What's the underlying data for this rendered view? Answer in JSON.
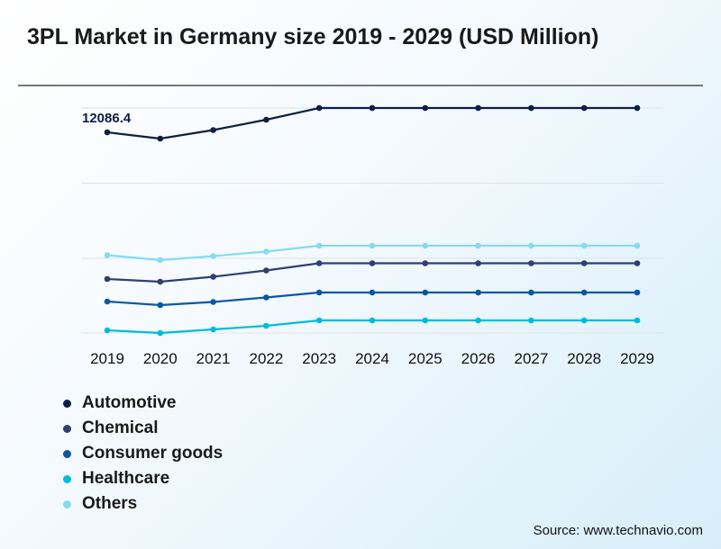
{
  "chart_data": {
    "type": "line",
    "title": "3PL Market in Germany size 2019 - 2029 (USD Million)",
    "xlabel": "",
    "ylabel": "",
    "categories": [
      "2019",
      "2020",
      "2021",
      "2022",
      "2023",
      "2024",
      "2025",
      "2026",
      "2027",
      "2028",
      "2029"
    ],
    "ylim": [
      0,
      16300
    ],
    "grid": true,
    "legend": "bottom-left",
    "series": [
      {
        "name": "Automotive",
        "color": "#0d1f45",
        "values": [
          12086.4,
          11707,
          12222,
          12846,
          13550,
          13550,
          13550,
          13550,
          13550,
          13550,
          13550
        ]
      },
      {
        "name": "Chemical",
        "color": "#2e3f72",
        "values": [
          3252,
          3089,
          3388,
          3767,
          4200,
          4200,
          4200,
          4200,
          4200,
          4200,
          4200
        ]
      },
      {
        "name": "Consumer goods",
        "color": "#0a57a6",
        "values": [
          1897,
          1680,
          1870,
          2141,
          2439,
          2439,
          2439,
          2439,
          2439,
          2439,
          2439
        ]
      },
      {
        "name": "Healthcare",
        "color": "#00bcd9",
        "values": [
          163,
          0,
          217,
          434,
          759,
          759,
          759,
          759,
          759,
          759,
          759
        ]
      },
      {
        "name": "Others",
        "color": "#86dbef",
        "values": [
          4688,
          4390,
          4634,
          4905,
          5257,
          5257,
          5257,
          5257,
          5257,
          5257,
          5257
        ]
      }
    ],
    "data_labels": [
      {
        "series": "Automotive",
        "category": "2019",
        "text": "12086.4"
      }
    ]
  },
  "source": "Source: www.technavio.com"
}
